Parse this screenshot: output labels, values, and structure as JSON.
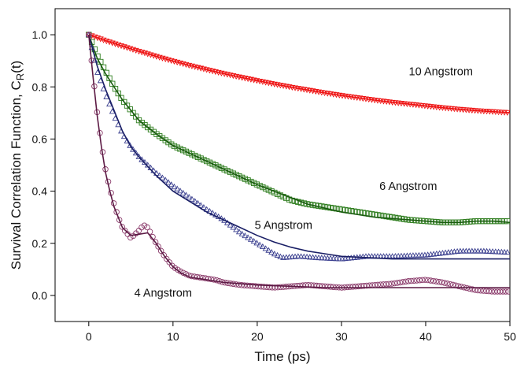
{
  "chart_data": {
    "type": "scatter",
    "title": "",
    "xlabel": "Time (ps)",
    "ylabel_main": "Survival Correlation Function, C",
    "ylabel_sub": "R",
    "ylabel_tail": "(t)",
    "xlim": [
      -4,
      50
    ],
    "ylim": [
      -0.1,
      1.1
    ],
    "xticks": [
      0,
      10,
      20,
      30,
      40,
      50
    ],
    "xtick_labels": [
      "0",
      "10",
      "20",
      "30",
      "40",
      "50"
    ],
    "yticks": [
      0.0,
      0.2,
      0.4,
      0.6,
      0.8,
      1.0
    ],
    "ytick_labels": [
      "0.0",
      "0.2",
      "0.4",
      "0.6",
      "0.8",
      "1.0"
    ],
    "grid": false,
    "legend": "none",
    "series": [
      {
        "label": "10 Angstrom",
        "color": "#ee1111",
        "marker": "triangle-down",
        "x": [
          0,
          2,
          4,
          6,
          8,
          10,
          12,
          14,
          16,
          18,
          20,
          22,
          24,
          26,
          28,
          30,
          32,
          34,
          36,
          38,
          40,
          42,
          44,
          46,
          48,
          50
        ],
        "y": [
          1.0,
          0.977,
          0.956,
          0.936,
          0.917,
          0.899,
          0.882,
          0.866,
          0.851,
          0.837,
          0.824,
          0.811,
          0.799,
          0.788,
          0.777,
          0.767,
          0.758,
          0.749,
          0.741,
          0.734,
          0.727,
          0.72,
          0.714,
          0.709,
          0.705,
          0.701
        ],
        "fit_x": [
          0,
          2,
          4,
          6,
          8,
          10,
          12,
          14,
          16,
          18,
          20,
          22,
          24,
          26,
          28,
          30,
          32,
          34,
          36,
          38,
          40,
          42,
          44,
          46,
          48,
          50
        ],
        "fit_y": [
          1.0,
          0.977,
          0.956,
          0.936,
          0.917,
          0.899,
          0.882,
          0.866,
          0.851,
          0.837,
          0.824,
          0.811,
          0.799,
          0.788,
          0.777,
          0.767,
          0.758,
          0.749,
          0.741,
          0.734,
          0.727,
          0.72,
          0.714,
          0.709,
          0.705,
          0.701
        ],
        "fit_color": "#ee1111"
      },
      {
        "label": "6 Angstrom",
        "color": "#2e7d1e",
        "marker": "square",
        "x": [
          0,
          1,
          2,
          3,
          4,
          5,
          6,
          8,
          10,
          12,
          14,
          16,
          18,
          20,
          22,
          24,
          26,
          28,
          30,
          32,
          34,
          36,
          38,
          40,
          42,
          44,
          46,
          48,
          50
        ],
        "y": [
          1.0,
          0.92,
          0.86,
          0.8,
          0.75,
          0.71,
          0.67,
          0.62,
          0.575,
          0.545,
          0.515,
          0.485,
          0.455,
          0.425,
          0.395,
          0.365,
          0.35,
          0.34,
          0.33,
          0.32,
          0.31,
          0.3,
          0.29,
          0.285,
          0.28,
          0.28,
          0.285,
          0.285,
          0.285
        ],
        "fit_x": [
          0,
          1,
          2,
          3,
          4,
          5,
          6,
          8,
          10,
          12,
          14,
          16,
          18,
          20,
          22,
          24,
          26,
          28,
          30,
          32,
          34,
          36,
          38,
          40,
          42,
          44,
          46,
          48,
          50
        ],
        "fit_y": [
          1.0,
          0.91,
          0.85,
          0.8,
          0.75,
          0.71,
          0.67,
          0.62,
          0.575,
          0.545,
          0.515,
          0.485,
          0.455,
          0.425,
          0.4,
          0.375,
          0.35,
          0.335,
          0.32,
          0.31,
          0.3,
          0.295,
          0.29,
          0.285,
          0.28,
          0.28,
          0.285,
          0.285,
          0.28
        ],
        "fit_color": "#1a5c10"
      },
      {
        "label": "5 Angstrom",
        "color": "#3a3f8f",
        "marker": "triangle-up",
        "x": [
          0,
          1,
          2,
          3,
          4,
          5,
          6,
          8,
          10,
          12,
          14,
          16,
          18,
          20,
          22,
          23,
          25,
          27,
          30,
          33,
          36,
          40,
          44,
          47,
          50
        ],
        "y": [
          1.0,
          0.86,
          0.77,
          0.69,
          0.62,
          0.57,
          0.53,
          0.47,
          0.42,
          0.375,
          0.33,
          0.29,
          0.24,
          0.2,
          0.16,
          0.145,
          0.15,
          0.145,
          0.14,
          0.15,
          0.15,
          0.155,
          0.17,
          0.17,
          0.165
        ],
        "fit_x": [
          0,
          1,
          2,
          3,
          4,
          5,
          6,
          8,
          10,
          12,
          14,
          16,
          18,
          20,
          22,
          24,
          26,
          28,
          30,
          33,
          36,
          40,
          44,
          50
        ],
        "fit_y": [
          1.0,
          0.88,
          0.79,
          0.71,
          0.63,
          0.57,
          0.53,
          0.46,
          0.4,
          0.36,
          0.32,
          0.29,
          0.26,
          0.23,
          0.205,
          0.185,
          0.17,
          0.16,
          0.15,
          0.145,
          0.14,
          0.14,
          0.14,
          0.14
        ],
        "fit_color": "#1a1f66"
      },
      {
        "label": "4 Angstrom",
        "color": "#8a3a6a",
        "marker": "circle",
        "x": [
          0,
          0.5,
          1,
          1.5,
          2,
          2.5,
          3,
          3.5,
          4,
          5,
          6,
          6.5,
          7,
          8,
          9,
          10,
          11,
          12,
          13,
          14,
          15,
          16,
          18,
          20,
          22,
          24,
          26,
          28,
          30,
          32,
          34,
          36,
          38,
          40,
          42,
          44,
          46,
          48,
          50
        ],
        "y": [
          1.0,
          0.85,
          0.7,
          0.58,
          0.48,
          0.41,
          0.35,
          0.3,
          0.26,
          0.22,
          0.25,
          0.27,
          0.26,
          0.2,
          0.15,
          0.11,
          0.09,
          0.075,
          0.07,
          0.065,
          0.06,
          0.05,
          0.04,
          0.035,
          0.03,
          0.035,
          0.04,
          0.035,
          0.03,
          0.035,
          0.04,
          0.045,
          0.055,
          0.06,
          0.05,
          0.035,
          0.02,
          0.015,
          0.015
        ],
        "fit_x": [
          0,
          0.5,
          1,
          1.5,
          2,
          2.5,
          3,
          3.5,
          4,
          5,
          6,
          7,
          8,
          9,
          10,
          11,
          12,
          14,
          16,
          18,
          20,
          24,
          28,
          32,
          36,
          40,
          44,
          50
        ],
        "fit_y": [
          1.0,
          0.84,
          0.69,
          0.57,
          0.47,
          0.4,
          0.34,
          0.3,
          0.26,
          0.23,
          0.235,
          0.24,
          0.2,
          0.15,
          0.11,
          0.085,
          0.07,
          0.06,
          0.05,
          0.045,
          0.04,
          0.035,
          0.03,
          0.03,
          0.03,
          0.03,
          0.03,
          0.03
        ],
        "fit_color": "#5c1a44"
      }
    ],
    "annotations": [
      {
        "text": "10 Angstrom",
        "x": 38,
        "y": 0.845
      },
      {
        "text": "6 Angstrom",
        "x": 34.5,
        "y": 0.405
      },
      {
        "text": "5 Angstrom",
        "x": 19.7,
        "y": 0.255
      },
      {
        "text": "4 Angstrom",
        "x": 5.4,
        "y": -0.005
      }
    ]
  }
}
